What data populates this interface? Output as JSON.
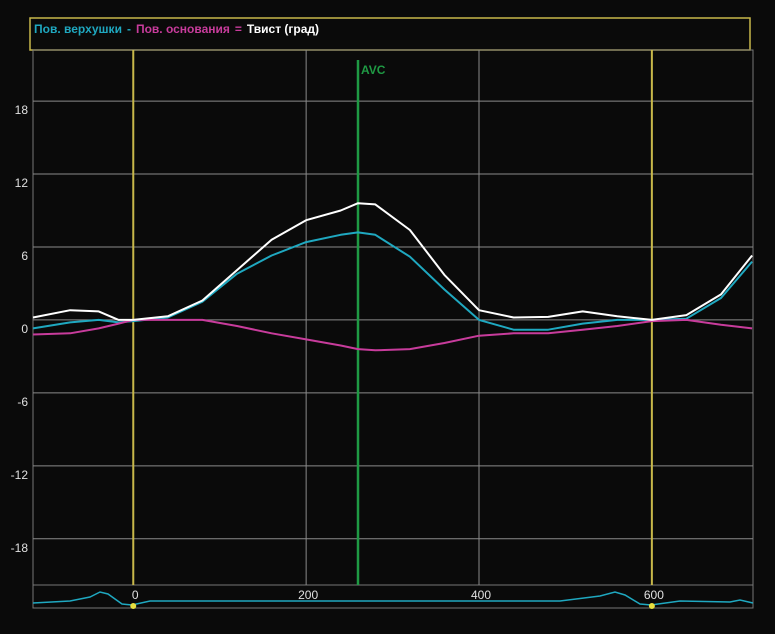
{
  "chart_data": {
    "type": "line",
    "x": [
      -116,
      -73,
      -40,
      -17,
      0,
      40,
      80,
      120,
      160,
      200,
      240,
      260,
      280,
      320,
      360,
      400,
      440,
      480,
      520,
      560,
      600,
      640,
      680,
      716
    ],
    "series": [
      {
        "name": "Пов. верхушки",
        "color": "#1fa8c0",
        "values": [
          -0.7,
          -0.2,
          0,
          -0.2,
          -0.1,
          0.2,
          1.5,
          3.8,
          5.3,
          6.4,
          7.0,
          7.2,
          7.0,
          5.2,
          2.5,
          0,
          -0.8,
          -0.8,
          -0.3,
          0,
          0,
          0.1,
          1.8,
          4.8
        ]
      },
      {
        "name": "Пов. основания",
        "color": "#c83c9c",
        "values": [
          -1.2,
          -1.1,
          -0.7,
          -0.3,
          0,
          0,
          0,
          -0.5,
          -1.1,
          -1.6,
          -2.1,
          -2.4,
          -2.5,
          -2.4,
          -1.9,
          -1.3,
          -1.1,
          -1.1,
          -0.8,
          -0.5,
          -0.1,
          0,
          -0.4,
          -0.7
        ]
      },
      {
        "name": "Твист  (град)",
        "color": "#ffffff",
        "values": [
          0.2,
          0.8,
          0.7,
          0,
          0,
          0.3,
          1.6,
          4.1,
          6.6,
          8.2,
          9.0,
          9.6,
          9.5,
          7.4,
          3.7,
          0.8,
          0.2,
          0.25,
          0.7,
          0.3,
          0,
          0.4,
          2.1,
          5.3
        ]
      }
    ],
    "legend_operators": [
      "-",
      "="
    ],
    "xlim": [
      -116,
      717
    ],
    "xticks": [
      0,
      200,
      400,
      600
    ],
    "ylim": [
      -21.8,
      22.2
    ],
    "yticks": [
      18,
      12,
      6,
      0,
      -6,
      -12,
      -18
    ],
    "grid": true,
    "markers": [
      {
        "x": 0,
        "color": "#c8b84a"
      },
      {
        "x": 600,
        "color": "#c8b84a"
      }
    ],
    "annotations": [
      {
        "x": 260,
        "label": "AVC",
        "color": "#1f9a44"
      }
    ]
  }
}
